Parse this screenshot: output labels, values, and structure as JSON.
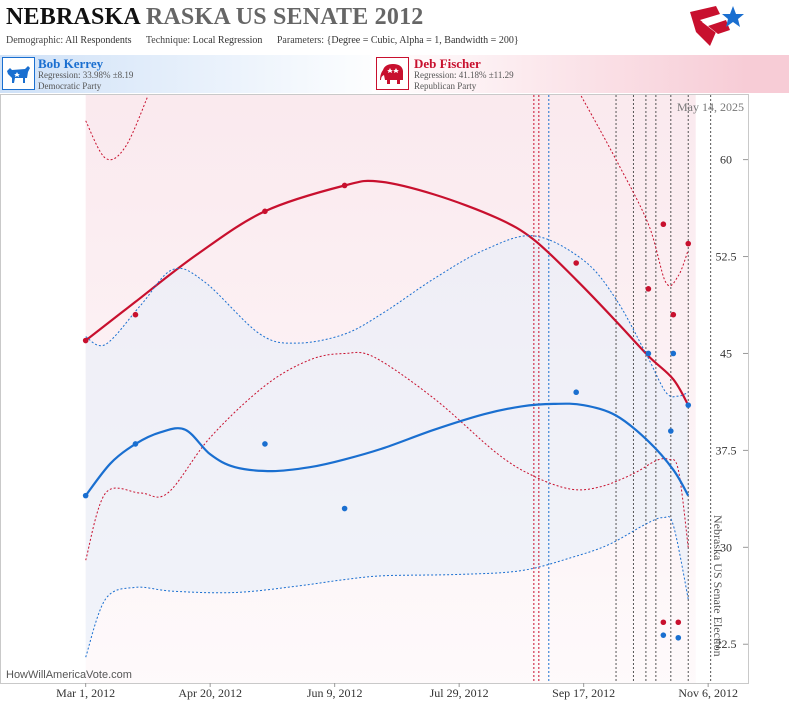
{
  "header": {
    "title_state": "NEBRASKA",
    "title_race": "RASKA US SENATE 2012",
    "demographic_label": "Demographic:",
    "demographic_value": "All Respondents",
    "technique_label": "Technique:",
    "technique_value": "Local Regression",
    "parameters_label": "Parameters:",
    "parameters_value": "{Degree = Cubic, Alpha = 1, Bandwidth = 200}"
  },
  "candidates": {
    "dem": {
      "name": "Bob Kerrey",
      "regression": "Regression: 33.98% ±8.19",
      "party": "Democratic Party"
    },
    "rep": {
      "name": "Deb Fischer",
      "regression": "Regression: 41.18% ±11.29",
      "party": "Republican Party"
    }
  },
  "colors": {
    "dem": "#1a6fd0",
    "rep": "#c8102e",
    "dem_band": "#e6effa",
    "rep_band": "#f9e4ea"
  },
  "chart_data": {
    "type": "line",
    "date_label": "May 14, 2025",
    "vertical_label": "Nebraska US Senate Election",
    "credit": "HowWillAmericaVote.com",
    "x_ticks": [
      "Mar 1, 2012",
      "Apr 20, 2012",
      "Jun 9, 2012",
      "Jul 29, 2012",
      "Sep 17, 2012",
      "Nov 6, 2012"
    ],
    "x_tick_days": [
      0,
      50,
      100,
      150,
      200,
      250
    ],
    "xlim_days": [
      -34,
      266
    ],
    "y_ticks": [
      "22.5",
      "30",
      "37.5",
      "45",
      "52.5",
      "60"
    ],
    "ylim": [
      19.5,
      65
    ],
    "grid": false,
    "shaded_days": [
      0,
      245
    ],
    "vlines": [
      {
        "day": 180,
        "color": "rep"
      },
      {
        "day": 182,
        "color": "rep"
      },
      {
        "day": 186,
        "color": "dem"
      },
      {
        "day": 213,
        "color": "gray"
      },
      {
        "day": 220,
        "color": "gray"
      },
      {
        "day": 225,
        "color": "gray"
      },
      {
        "day": 229,
        "color": "gray"
      },
      {
        "day": 235,
        "color": "gray"
      },
      {
        "day": 242,
        "color": "gray"
      },
      {
        "day": 251,
        "color": "gray"
      }
    ],
    "series": [
      {
        "name": "Deb Fischer",
        "color": "rep",
        "points": [
          [
            0,
            46
          ],
          [
            20,
            48
          ],
          [
            72,
            56
          ],
          [
            104,
            58
          ],
          [
            197,
            52
          ],
          [
            226,
            50
          ],
          [
            232,
            55
          ],
          [
            236,
            48
          ],
          [
            242,
            53.5
          ],
          [
            232,
            24.2
          ],
          [
            238,
            24.2
          ]
        ],
        "trend": [
          [
            0,
            46
          ],
          [
            20,
            49
          ],
          [
            45,
            52.7
          ],
          [
            72,
            56
          ],
          [
            104,
            58
          ],
          [
            118,
            58.3
          ],
          [
            140,
            57.3
          ],
          [
            165,
            55.5
          ],
          [
            180,
            53.8
          ],
          [
            197,
            50.7
          ],
          [
            213,
            47.5
          ],
          [
            226,
            44.8
          ],
          [
            236,
            43
          ],
          [
            242,
            41
          ]
        ],
        "upper": [
          [
            0,
            63
          ],
          [
            8,
            60.1
          ],
          [
            16,
            61
          ],
          [
            25,
            65
          ]
        ],
        "upper_tail": [
          [
            199,
            65
          ],
          [
            213,
            60
          ],
          [
            226,
            55
          ],
          [
            233,
            50.5
          ],
          [
            238,
            51
          ],
          [
            242,
            53
          ]
        ],
        "lower": [
          [
            0,
            29
          ],
          [
            8,
            34.2
          ],
          [
            22,
            34.2
          ],
          [
            33,
            34.2
          ],
          [
            50,
            38.5
          ],
          [
            72,
            42.5
          ],
          [
            90,
            44.5
          ],
          [
            104,
            45
          ],
          [
            116,
            44.7
          ],
          [
            140,
            41.5
          ],
          [
            165,
            37.3
          ],
          [
            180,
            35.5
          ],
          [
            195,
            34.5
          ],
          [
            207,
            34.7
          ],
          [
            220,
            35.7
          ],
          [
            229,
            36.7
          ],
          [
            234,
            36.8
          ],
          [
            238,
            36
          ],
          [
            242,
            30
          ]
        ]
      },
      {
        "name": "Bob Kerrey",
        "color": "dem",
        "points": [
          [
            0,
            34
          ],
          [
            20,
            38
          ],
          [
            72,
            38
          ],
          [
            104,
            33
          ],
          [
            197,
            42
          ],
          [
            226,
            45
          ],
          [
            235,
            39
          ],
          [
            236,
            45
          ],
          [
            242,
            41
          ],
          [
            232,
            23.2
          ],
          [
            238,
            23
          ]
        ],
        "trend": [
          [
            0,
            34
          ],
          [
            10,
            36.5
          ],
          [
            20,
            38
          ],
          [
            30,
            38.9
          ],
          [
            40,
            39.1
          ],
          [
            50,
            37.2
          ],
          [
            60,
            36.2
          ],
          [
            75,
            35.9
          ],
          [
            90,
            36.2
          ],
          [
            104,
            36.8
          ],
          [
            120,
            37.7
          ],
          [
            140,
            39.1
          ],
          [
            160,
            40.3
          ],
          [
            175,
            40.9
          ],
          [
            188,
            41.1
          ],
          [
            200,
            41
          ],
          [
            213,
            40.2
          ],
          [
            226,
            38.2
          ],
          [
            236,
            36
          ],
          [
            242,
            34
          ]
        ],
        "upper": [
          [
            0,
            46.3
          ],
          [
            8,
            45.7
          ],
          [
            22,
            48.7
          ],
          [
            35,
            51.5
          ],
          [
            48,
            50.5
          ],
          [
            70,
            46.5
          ],
          [
            85,
            45.8
          ],
          [
            104,
            46.5
          ],
          [
            120,
            48.2
          ],
          [
            140,
            50.8
          ],
          [
            160,
            53
          ],
          [
            180,
            54.1
          ],
          [
            200,
            52.2
          ],
          [
            213,
            49.2
          ],
          [
            225,
            45
          ],
          [
            233,
            42
          ],
          [
            238,
            41.7
          ],
          [
            242,
            42
          ]
        ],
        "lower": [
          [
            0,
            21.5
          ],
          [
            8,
            26
          ],
          [
            20,
            26.9
          ],
          [
            35,
            26.6
          ],
          [
            60,
            26.5
          ],
          [
            85,
            27
          ],
          [
            104,
            27.5
          ],
          [
            120,
            27.8
          ],
          [
            150,
            27.9
          ],
          [
            175,
            28.2
          ],
          [
            195,
            29.2
          ],
          [
            210,
            30.2
          ],
          [
            225,
            31.8
          ],
          [
            232,
            32.3
          ],
          [
            236,
            31.7
          ],
          [
            242,
            26
          ]
        ]
      }
    ]
  }
}
